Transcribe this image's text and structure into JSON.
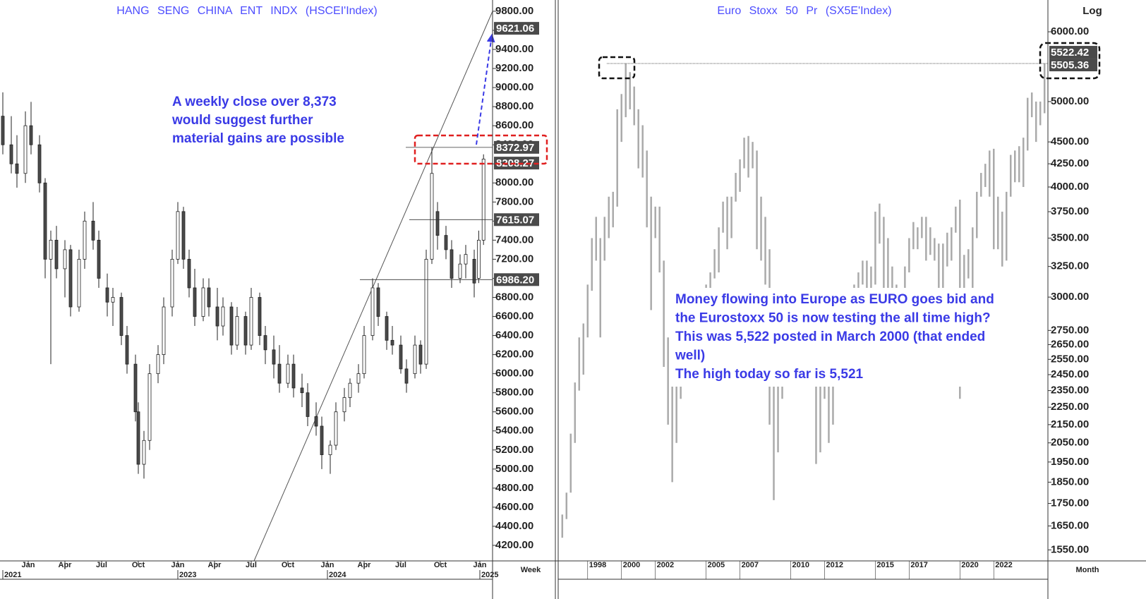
{
  "chart_data": [
    {
      "type": "candlestick",
      "title": "HANG SENG CHINA ENT INDX (HSCEI'Index)",
      "x": [
        1,
        4,
        6,
        9,
        11,
        14,
        16,
        18,
        20,
        23,
        25,
        28,
        30,
        33,
        35,
        38,
        40,
        43,
        45,
        48,
        49,
        51,
        53,
        56,
        58,
        61,
        63,
        65,
        67,
        69,
        72,
        74,
        77,
        79,
        82,
        84,
        87,
        89,
        92,
        94,
        97,
        99,
        102,
        104,
        107,
        109,
        112,
        114,
        117,
        119,
        122,
        124,
        127,
        129,
        132,
        134,
        137,
        139,
        142,
        144,
        147,
        149,
        151,
        153,
        155,
        158,
        160,
        163,
        165,
        168,
        169.6,
        171.3
      ],
      "open": [
        8700,
        8400,
        8200,
        8100,
        8600,
        8400,
        8000,
        7200,
        7400,
        7100,
        7300,
        6700,
        7200,
        7600,
        7400,
        6900,
        6750,
        6800,
        6400,
        6100,
        5600,
        5050,
        5300,
        6000,
        6200,
        6700,
        7200,
        7700,
        7200,
        6900,
        6600,
        6900,
        6700,
        6500,
        6700,
        6300,
        6600,
        6300,
        6800,
        6400,
        6250,
        6100,
        5900,
        6100,
        5850,
        5800,
        5550,
        5450,
        5150,
        5250,
        5600,
        5750,
        5900,
        6000,
        6400,
        6900,
        6600,
        6350,
        6300,
        6050,
        6000,
        6300,
        6100,
        7200,
        7700,
        7450,
        7300,
        7000,
        7150,
        7200,
        7000,
        7400
      ],
      "high": [
        8950,
        8700,
        8500,
        8750,
        8850,
        8500,
        8050,
        7500,
        7550,
        7400,
        7350,
        7300,
        7700,
        7800,
        7500,
        7050,
        6900,
        6850,
        6500,
        6200,
        5700,
        5400,
        6100,
        6300,
        6800,
        7300,
        7800,
        7750,
        7300,
        7100,
        7000,
        7000,
        6900,
        6800,
        6750,
        6700,
        6650,
        6900,
        6850,
        6500,
        6400,
        6300,
        6200,
        6200,
        6000,
        5900,
        5700,
        5550,
        5300,
        5700,
        5850,
        5950,
        6100,
        6500,
        7000,
        6950,
        6650,
        6500,
        6400,
        6150,
        6400,
        6350,
        7300,
        8373,
        7800,
        7550,
        7400,
        7250,
        7350,
        7300,
        7500,
        8300
      ],
      "low": [
        8300,
        8100,
        7950,
        8000,
        8300,
        7900,
        7000,
        6100,
        7000,
        6800,
        6600,
        6650,
        7100,
        7300,
        6900,
        6600,
        6500,
        6300,
        6000,
        5500,
        4950,
        4900,
        5200,
        5900,
        6100,
        6600,
        7150,
        7100,
        6800,
        6500,
        6550,
        6600,
        6350,
        6400,
        6200,
        6250,
        6200,
        6250,
        6300,
        6100,
        5950,
        5800,
        5850,
        5750,
        5650,
        5450,
        5350,
        5000,
        4950,
        5200,
        5500,
        5650,
        5800,
        5950,
        6350,
        6500,
        6250,
        6200,
        6000,
        5800,
        5950,
        6000,
        6050,
        7150,
        7300,
        7200,
        6900,
        6950,
        7000,
        6800,
        6950,
        7350
      ],
      "close": [
        8400,
        8200,
        8100,
        8600,
        8400,
        8000,
        7200,
        7400,
        7100,
        7300,
        6700,
        7200,
        7600,
        7400,
        7000,
        6750,
        6800,
        6400,
        6100,
        5600,
        5050,
        5300,
        6000,
        6200,
        6700,
        7200,
        7700,
        7200,
        6900,
        6600,
        6900,
        6700,
        6500,
        6700,
        6300,
        6600,
        6300,
        6800,
        6400,
        6250,
        6100,
        5900,
        6100,
        5850,
        5800,
        5550,
        5450,
        5150,
        5250,
        5600,
        5750,
        5900,
        6000,
        6400,
        6900,
        6600,
        6350,
        6300,
        6050,
        5900,
        6300,
        6100,
        7200,
        8100,
        7450,
        7300,
        7000,
        7150,
        7250,
        6950,
        7400,
        8250
      ],
      "xlim": [
        0,
        174.5
      ],
      "xticks": [
        {
          "value": 10,
          "label": "Jan"
        },
        {
          "value": 23,
          "label": "Apr"
        },
        {
          "value": 36,
          "label": "Jul"
        },
        {
          "value": 49,
          "label": "Oct"
        },
        {
          "value": 63,
          "label": "Jan"
        },
        {
          "value": 76,
          "label": "Apr"
        },
        {
          "value": 89,
          "label": "Jul"
        },
        {
          "value": 102,
          "label": "Oct"
        },
        {
          "value": 116,
          "label": "Jan"
        },
        {
          "value": 129,
          "label": "Apr"
        },
        {
          "value": 142,
          "label": "Jul"
        },
        {
          "value": 156,
          "label": "Oct"
        },
        {
          "value": 170,
          "label": "Jan"
        }
      ],
      "years": [
        {
          "value": 1,
          "label": "2021"
        },
        {
          "value": 63,
          "label": "2023"
        },
        {
          "value": 116,
          "label": "2024"
        },
        {
          "value": 170,
          "label": "2025"
        }
      ],
      "x_axis_label": "Week",
      "ylim": [
        4037,
        9918
      ],
      "yticks": [
        {
          "value": 9800,
          "label": "9800.00"
        },
        {
          "value": 9600,
          "label": "9600.00"
        },
        {
          "value": 9400,
          "label": "9400.00"
        },
        {
          "value": 9200,
          "label": "9200.00"
        },
        {
          "value": 9000,
          "label": "9000.00"
        },
        {
          "value": 8800,
          "label": "8800.00"
        },
        {
          "value": 8600,
          "label": "8600.00"
        },
        {
          "value": 8400,
          "label": "8400.00"
        },
        {
          "value": 8200,
          "label": "8200.00"
        },
        {
          "value": 8000,
          "label": "8000.00"
        },
        {
          "value": 7800,
          "label": "7800.00"
        },
        {
          "value": 7600,
          "label": "7600.00"
        },
        {
          "value": 7400,
          "label": "7400.00"
        },
        {
          "value": 7200,
          "label": "7200.00"
        },
        {
          "value": 7000,
          "label": "7000.00"
        },
        {
          "value": 6800,
          "label": "6800.00"
        },
        {
          "value": 6600,
          "label": "6600.00"
        },
        {
          "value": 6400,
          "label": "6400.00"
        },
        {
          "value": 6200,
          "label": "6200.00"
        },
        {
          "value": 6000,
          "label": "6000.00"
        },
        {
          "value": 5800,
          "label": "5800.00"
        },
        {
          "value": 5600,
          "label": "5600.00"
        },
        {
          "value": 5400,
          "label": "5400.00"
        },
        {
          "value": 5200,
          "label": "5200.00"
        },
        {
          "value": 5000,
          "label": "5000.00"
        },
        {
          "value": 4800,
          "label": "4800.00"
        },
        {
          "value": 4600,
          "label": "4600.00"
        },
        {
          "value": 4400,
          "label": "4400.00"
        },
        {
          "value": 4200,
          "label": "4200.00"
        }
      ],
      "levels": [
        {
          "value": 9621.06,
          "label": "9621.06"
        },
        {
          "value": 8372.97,
          "label": "8372.97"
        },
        {
          "value": 8208.27,
          "label": "8208.27"
        },
        {
          "value": 7615.07,
          "label": "7615.07"
        },
        {
          "value": 6986.2,
          "label": "6986.20"
        }
      ],
      "annotation": [
        "A weekly close over 8,373",
        "would suggest further",
        "material gains are possible"
      ]
    },
    {
      "type": "range",
      "title": "Euro Stoxx 50 Pr (SX5E'Index)",
      "log": true,
      "x": [
        1996.5,
        1996.75,
        1997,
        1997.25,
        1997.5,
        1997.75,
        1998,
        1998.25,
        1998.5,
        1998.75,
        1999,
        1999.25,
        1999.5,
        1999.75,
        2000,
        2000.25,
        2000.5,
        2000.75,
        2001,
        2001.25,
        2001.5,
        2001.75,
        2002,
        2002.25,
        2002.5,
        2002.75,
        2003,
        2003.25,
        2003.5,
        2003.75,
        2004,
        2004.25,
        2004.5,
        2004.75,
        2005,
        2005.25,
        2005.5,
        2005.75,
        2006,
        2006.25,
        2006.5,
        2006.75,
        2007,
        2007.25,
        2007.5,
        2007.75,
        2008,
        2008.25,
        2008.5,
        2008.75,
        2009,
        2009.25,
        2009.5,
        2009.75,
        2010,
        2010.25,
        2010.5,
        2010.75,
        2011,
        2011.25,
        2011.5,
        2011.75,
        2012,
        2012.25,
        2012.5,
        2012.75,
        2013,
        2013.25,
        2013.5,
        2013.75,
        2014,
        2014.25,
        2014.5,
        2014.75,
        2015,
        2015.25,
        2015.5,
        2015.75,
        2016,
        2016.25,
        2016.5,
        2016.75,
        2017,
        2017.25,
        2017.5,
        2017.75,
        2018,
        2018.25,
        2018.5,
        2018.75,
        2019,
        2019.25,
        2019.5,
        2019.75,
        2020,
        2020.25,
        2020.5,
        2020.75,
        2021,
        2021.25,
        2021.5,
        2021.75,
        2022,
        2022.25,
        2022.5,
        2022.75,
        2023,
        2023.25,
        2023.5,
        2023.75,
        2024,
        2024.25,
        2024.5,
        2024.75,
        2025
      ],
      "high": [
        1700,
        1800,
        2100,
        2400,
        2700,
        2800,
        3100,
        3500,
        3700,
        3500,
        3700,
        3900,
        3950,
        4900,
        5100,
        5522,
        5400,
        5200,
        4900,
        4700,
        4400,
        3900,
        3800,
        3800,
        3300,
        2700,
        2600,
        2450,
        2550,
        2750,
        2950,
        2950,
        2850,
        2950,
        3100,
        3200,
        3400,
        3600,
        3850,
        3900,
        3900,
        4150,
        4300,
        4550,
        4570,
        4500,
        4400,
        3900,
        3700,
        3400,
        2600,
        2500,
        2900,
        3000,
        3000,
        3000,
        2800,
        2900,
        3050,
        3000,
        2850,
        2450,
        2600,
        2550,
        2550,
        2650,
        2750,
        2800,
        2950,
        3100,
        3200,
        3300,
        3300,
        3250,
        3750,
        3830,
        3700,
        3500,
        3250,
        3100,
        3050,
        3250,
        3500,
        3650,
        3600,
        3700,
        3700,
        3600,
        3500,
        3450,
        3450,
        3550,
        3600,
        3800,
        3870,
        3350,
        3400,
        3600,
        3950,
        4150,
        4250,
        4400,
        4420,
        3900,
        3750,
        3950,
        4350,
        4400,
        4450,
        4550,
        5050,
        5120,
        5000,
        5000,
        5521
      ],
      "low": [
        1600,
        1680,
        1800,
        2050,
        2350,
        2450,
        2700,
        3050,
        3300,
        2700,
        3300,
        3500,
        3600,
        3800,
        4500,
        4800,
        4900,
        4700,
        4200,
        4100,
        3600,
        2900,
        3500,
        3200,
        2500,
        2150,
        1850,
        2050,
        2300,
        2450,
        2700,
        2650,
        2600,
        2750,
        2900,
        2950,
        3150,
        3200,
        3550,
        3400,
        3500,
        3850,
        3950,
        4200,
        4100,
        4200,
        3400,
        3300,
        3100,
        2150,
        1765,
        2000,
        2300,
        2750,
        2650,
        2500,
        2500,
        2650,
        2750,
        2750,
        1940,
        2000,
        2300,
        2050,
        2150,
        2450,
        2500,
        2500,
        2600,
        2900,
        2950,
        3100,
        3000,
        2800,
        3100,
        3450,
        3000,
        3050,
        2700,
        2700,
        2750,
        2950,
        3200,
        3400,
        3400,
        3500,
        3300,
        3350,
        3300,
        2900,
        3000,
        3250,
        3300,
        3550,
        2300,
        2800,
        3150,
        3000,
        3500,
        3900,
        4000,
        3900,
        3400,
        3400,
        3250,
        3300,
        3900,
        4050,
        4050,
        4000,
        4400,
        4800,
        4500,
        4700,
        4850
      ],
      "xlim": [
        1996.3,
        2025.2
      ],
      "xticks": [
        1998,
        2000,
        2002,
        2005,
        2007,
        2010,
        2012,
        2015,
        2017,
        2020,
        2022
      ],
      "x_axis_label": "Month",
      "y_axis_label": "Log",
      "ylim": [
        1520,
        6330
      ],
      "yticks": [
        {
          "value": 6000,
          "label": "6000.00"
        },
        {
          "value": 5000,
          "label": "5000.00"
        },
        {
          "value": 4500,
          "label": "4500.00"
        },
        {
          "value": 4250,
          "label": "4250.00"
        },
        {
          "value": 4000,
          "label": "4000.00"
        },
        {
          "value": 3750,
          "label": "3750.00"
        },
        {
          "value": 3500,
          "label": "3500.00"
        },
        {
          "value": 3250,
          "label": "3250.00"
        },
        {
          "value": 3000,
          "label": "3000.00"
        },
        {
          "value": 2750,
          "label": "2750.00"
        },
        {
          "value": 2650,
          "label": "2650.00"
        },
        {
          "value": 2550,
          "label": "2550.00"
        },
        {
          "value": 2450,
          "label": "2450.00"
        },
        {
          "value": 2350,
          "label": "2350.00"
        },
        {
          "value": 2250,
          "label": "2250.00"
        },
        {
          "value": 2150,
          "label": "2150.00"
        },
        {
          "value": 2050,
          "label": "2050.00"
        },
        {
          "value": 1950,
          "label": "1950.00"
        },
        {
          "value": 1850,
          "label": "1850.00"
        },
        {
          "value": 1750,
          "label": "1750.00"
        },
        {
          "value": 1650,
          "label": "1650.00"
        },
        {
          "value": 1550,
          "label": "1550.00"
        }
      ],
      "levels": [
        {
          "value": 5522.42,
          "label": "5522.42"
        },
        {
          "value": 5505.36,
          "label": "5505.36"
        }
      ],
      "annotation": [
        "Money flowing into Europe as EURO goes bid and",
        "the Eurostoxx 50 is now testing the all time high?",
        "This was 5,522 posted in March 2000 (that ended",
        "well)",
        "The high today so far is 5,521"
      ]
    }
  ]
}
